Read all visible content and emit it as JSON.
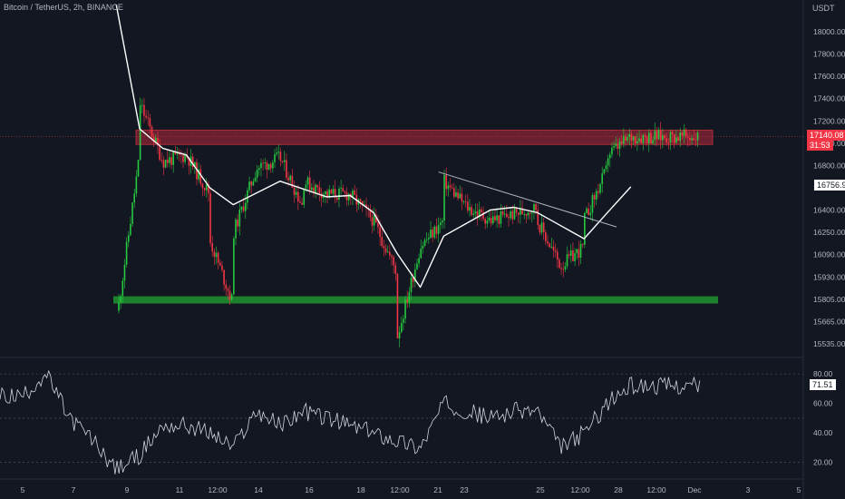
{
  "header": {
    "symbol": "Bitcoin / TetherUS, 2h, BINANCE"
  },
  "price_axis": {
    "currency": "USDT",
    "ticks": [
      "18000.00",
      "17800.00",
      "17600.00",
      "17400.00",
      "17200.00",
      "17000.00",
      "16800.00",
      "16600.00",
      "16400.00",
      "16250.00",
      "16090.00",
      "15930.00",
      "15805.00",
      "15665.00",
      "15535.00"
    ],
    "last_price": "17140.08",
    "countdown": "31:53",
    "ma_value": "16756.90"
  },
  "rsi_axis": {
    "ticks": [
      "80.00",
      "60.00",
      "40.00",
      "20.00"
    ],
    "value": "71.51"
  },
  "time_axis": {
    "ticks": [
      "5",
      "7",
      "9",
      "11",
      "12:00",
      "14",
      "16",
      "18",
      "12:00",
      "21",
      "23",
      "25",
      "12:00",
      "28",
      "12:00",
      "Dec",
      "3",
      "5"
    ]
  },
  "colors": {
    "up": "#26c940",
    "down": "#f23645",
    "ma": "#ffffff",
    "resistance_zone": "#b2283a",
    "support_zone": "#1e8c2e",
    "background": "#131722"
  },
  "chart_data": {
    "type": "candlestick",
    "timeframe": "2h",
    "ylim": [
      15480,
      18150
    ],
    "resistance_zone": [
      17080,
      17190
    ],
    "support_zone": [
      15865,
      15920
    ],
    "trendline": {
      "from": [
        "Nov 22",
        16870
      ],
      "to": [
        "Nov 30",
        16450
      ]
    },
    "price_path": [
      [
        "Nov 8",
        18400
      ],
      [
        "Nov 9",
        17200
      ],
      [
        "Nov 9",
        15720
      ],
      [
        "Nov 10",
        17000
      ],
      [
        "Nov 10",
        17900
      ],
      [
        "Nov 10",
        17400
      ],
      [
        "Nov 11",
        16950
      ],
      [
        "Nov 12",
        17000
      ],
      [
        "Nov 13",
        16700
      ],
      [
        "Nov 13",
        16350
      ],
      [
        "Nov 14",
        15860
      ],
      [
        "Nov 14",
        16400
      ],
      [
        "Nov 15",
        16900
      ],
      [
        "Nov 16",
        16980
      ],
      [
        "Nov 17",
        16600
      ],
      [
        "Nov 17",
        16800
      ],
      [
        "Nov 18",
        16700
      ],
      [
        "Nov 19",
        16700
      ],
      [
        "Nov 20",
        16500
      ],
      [
        "Nov 21",
        16100
      ],
      [
        "Nov 21",
        15600
      ],
      [
        "Nov 22",
        16300
      ],
      [
        "Nov 23",
        16500
      ],
      [
        "Nov 23",
        16800
      ],
      [
        "Nov 24",
        16600
      ],
      [
        "Nov 25",
        16500
      ],
      [
        "Nov 26",
        16550
      ],
      [
        "Nov 27",
        16600
      ],
      [
        "Nov 27",
        16500
      ],
      [
        "Nov 28",
        16150
      ],
      [
        "Nov 29",
        16300
      ],
      [
        "Nov 29",
        16500
      ],
      [
        "Nov 30",
        16900
      ],
      [
        "Nov 30",
        17000
      ],
      [
        "Dec 1",
        17140
      ]
    ],
    "moving_average": [
      [
        "Nov 9",
        18150
      ],
      [
        "Nov 10",
        17200
      ],
      [
        "Nov 11",
        17050
      ],
      [
        "Nov 12",
        17000
      ],
      [
        "Nov 13",
        16750
      ],
      [
        "Nov 14",
        16620
      ],
      [
        "Nov 16",
        16800
      ],
      [
        "Nov 18",
        16680
      ],
      [
        "Nov 19",
        16690
      ],
      [
        "Nov 20",
        16560
      ],
      [
        "Nov 21",
        16250
      ],
      [
        "Nov 22",
        15990
      ],
      [
        "Nov 23",
        16380
      ],
      [
        "Nov 25",
        16580
      ],
      [
        "Nov 26",
        16600
      ],
      [
        "Nov 27",
        16560
      ],
      [
        "Nov 28",
        16460
      ],
      [
        "Nov 29",
        16360
      ],
      [
        "Nov 30",
        16560
      ],
      [
        "Dec 1",
        16757
      ]
    ],
    "rsi": {
      "ylim": [
        10,
        85
      ],
      "levels": [
        80,
        50,
        20
      ],
      "path": [
        [
          "Nov 5",
          65
        ],
        [
          "Nov 6",
          80
        ],
        [
          "Nov 7",
          50
        ],
        [
          "Nov 8",
          35
        ],
        [
          "Nov 9",
          15
        ],
        [
          "Nov 10",
          25
        ],
        [
          "Nov 11",
          45
        ],
        [
          "Nov 12",
          45
        ],
        [
          "Nov 13",
          40
        ],
        [
          "Nov 14",
          30
        ],
        [
          "Nov 15",
          55
        ],
        [
          "Nov 16",
          45
        ],
        [
          "Nov 17",
          55
        ],
        [
          "Nov 18",
          50
        ],
        [
          "Nov 19",
          45
        ],
        [
          "Nov 20",
          40
        ],
        [
          "Nov 21",
          35
        ],
        [
          "Nov 22",
          30
        ],
        [
          "Nov 23",
          60
        ],
        [
          "Nov 24",
          55
        ],
        [
          "Nov 25",
          50
        ],
        [
          "Nov 26",
          55
        ],
        [
          "Nov 27",
          55
        ],
        [
          "Nov 28",
          30
        ],
        [
          "Nov 29",
          40
        ],
        [
          "Nov 30",
          60
        ],
        [
          "Dec 1",
          72
        ]
      ]
    }
  }
}
